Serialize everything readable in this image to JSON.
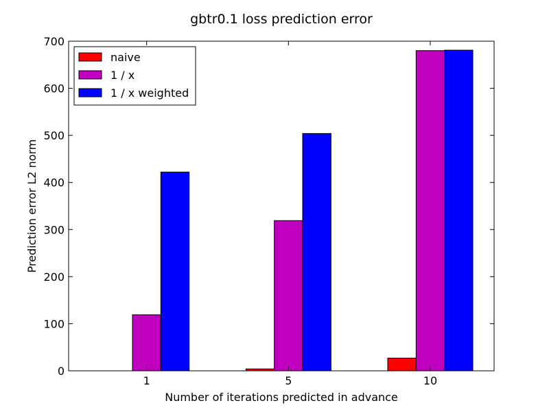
{
  "chart_data": {
    "type": "bar",
    "title": "gbtr0.1 loss prediction error",
    "xlabel": "Number of iterations predicted in advance",
    "ylabel": "Prediction error L2 norm",
    "categories": [
      "1",
      "5",
      "10"
    ],
    "series": [
      {
        "name": "naive",
        "color": "#ff0000",
        "values": [
          0,
          4,
          27
        ]
      },
      {
        "name": "1 / x",
        "color": "#bf00bf",
        "values": [
          119,
          319,
          680
        ]
      },
      {
        "name": "1 / x weighted",
        "color": "#0000ff",
        "values": [
          422,
          504,
          681
        ]
      }
    ],
    "ylim": [
      0,
      700
    ],
    "yticks": [
      0,
      100,
      200,
      300,
      400,
      500,
      600,
      700
    ],
    "grid": false,
    "legend_position": "top-left"
  }
}
